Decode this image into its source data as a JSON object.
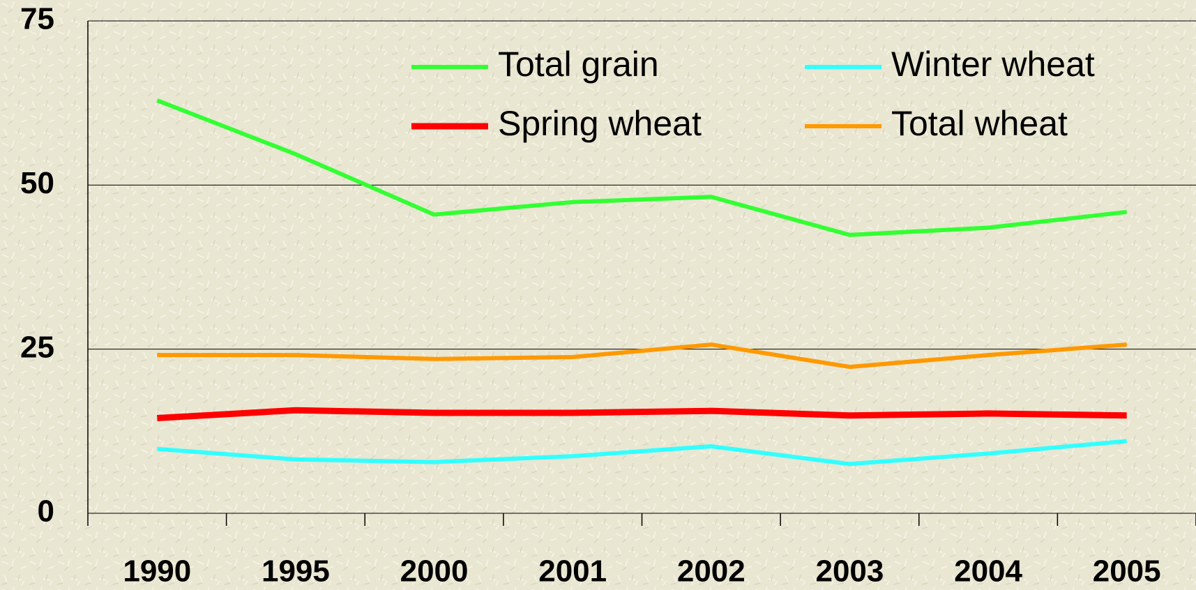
{
  "chart_data": {
    "type": "line",
    "categories": [
      "1990",
      "1995",
      "2000",
      "2001",
      "2002",
      "2003",
      "2004",
      "2005"
    ],
    "series": [
      {
        "name": "Total grain",
        "color": "#33ff33",
        "values": [
          62.9,
          54.7,
          45.5,
          47.4,
          48.2,
          42.4,
          43.5,
          45.9
        ]
      },
      {
        "name": "Winter wheat",
        "color": "#33ffff",
        "values": [
          9.8,
          8.2,
          7.8,
          8.7,
          10.2,
          7.5,
          9.1,
          11.0
        ]
      },
      {
        "name": "Spring wheat",
        "color": "#ff0000",
        "values": [
          14.5,
          15.7,
          15.3,
          15.3,
          15.6,
          14.9,
          15.2,
          14.9
        ]
      },
      {
        "name": "Total wheat",
        "color": "#ff9900",
        "values": [
          24.1,
          24.1,
          23.5,
          23.8,
          25.7,
          22.3,
          24.1,
          25.7
        ]
      }
    ],
    "ylim": [
      0,
      75
    ],
    "yticks": [
      0,
      25,
      50,
      75
    ],
    "grid": true
  }
}
